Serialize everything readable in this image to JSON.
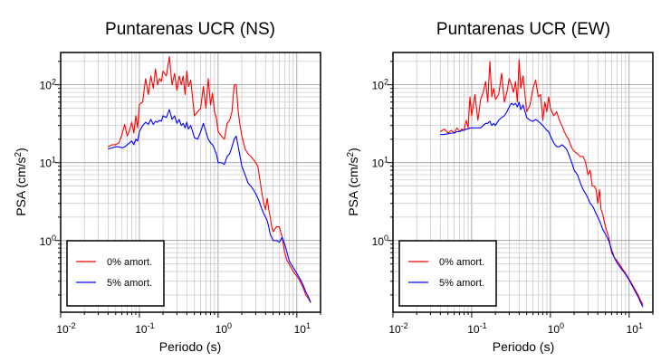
{
  "chart_data": [
    {
      "type": "line",
      "title": "Puntarenas UCR (NS)",
      "xlabel": "Periodo (s)",
      "ylabel": "PSA (cm/s",
      "ylabel_sup": "2",
      "ylabel_close": ")",
      "xscale": "log",
      "yscale": "log",
      "xlim": [
        0.01,
        20
      ],
      "ylim": [
        0.12,
        260
      ],
      "grid": true,
      "legend_position": "bottom-left",
      "xticks": [
        {
          "value": 0.01,
          "base": "10",
          "exp": "-2"
        },
        {
          "value": 0.1,
          "base": "10",
          "exp": "-1"
        },
        {
          "value": 1,
          "base": "10",
          "exp": "0"
        },
        {
          "value": 10,
          "base": "10",
          "exp": "1"
        }
      ],
      "yticks": [
        {
          "value": 1,
          "base": "10",
          "exp": "0"
        },
        {
          "value": 10,
          "base": "10",
          "exp": "1"
        },
        {
          "value": 100,
          "base": "10",
          "exp": "2"
        }
      ],
      "series": [
        {
          "name": "0% amort.",
          "color": "#ff0000",
          "x": [
            0.04,
            0.045,
            0.05,
            0.055,
            0.06,
            0.065,
            0.07,
            0.075,
            0.08,
            0.085,
            0.09,
            0.095,
            0.1,
            0.11,
            0.12,
            0.13,
            0.14,
            0.15,
            0.16,
            0.17,
            0.18,
            0.19,
            0.2,
            0.22,
            0.24,
            0.26,
            0.28,
            0.3,
            0.32,
            0.34,
            0.36,
            0.38,
            0.4,
            0.42,
            0.45,
            0.5,
            0.55,
            0.6,
            0.65,
            0.7,
            0.75,
            0.8,
            0.85,
            0.9,
            0.95,
            1.0,
            1.1,
            1.2,
            1.3,
            1.4,
            1.5,
            1.6,
            1.7,
            1.8,
            1.9,
            2.0,
            2.2,
            2.4,
            2.6,
            2.8,
            3.0,
            3.2,
            3.4,
            3.6,
            3.8,
            4.0,
            4.2,
            4.4,
            4.6,
            4.8,
            5.0,
            5.5,
            6.0,
            6.5,
            7.0,
            7.5,
            8.0,
            9.0,
            10,
            11,
            12,
            13,
            14,
            15
          ],
          "values": [
            16,
            17,
            17,
            18,
            23,
            31,
            22,
            26,
            33,
            24,
            40,
            28,
            56,
            60,
            120,
            75,
            130,
            90,
            160,
            100,
            120,
            110,
            150,
            130,
            230,
            100,
            140,
            85,
            130,
            100,
            130,
            75,
            150,
            95,
            115,
            40,
            45,
            50,
            95,
            50,
            120,
            55,
            78,
            45,
            38,
            25,
            22,
            20,
            32,
            35,
            45,
            100,
            100,
            45,
            30,
            22,
            15,
            13,
            12,
            11,
            10,
            9,
            6,
            4,
            3,
            2.5,
            3.5,
            2.5,
            2.0,
            1.5,
            1.3,
            1.5,
            1.5,
            1.1,
            0.7,
            0.55,
            0.5,
            0.4,
            0.35,
            0.3,
            0.25,
            0.2,
            0.18,
            0.16
          ]
        },
        {
          "name": "5% amort.",
          "color": "#0000ff",
          "x": [
            0.04,
            0.045,
            0.05,
            0.055,
            0.06,
            0.065,
            0.07,
            0.075,
            0.08,
            0.085,
            0.09,
            0.095,
            0.1,
            0.11,
            0.12,
            0.13,
            0.14,
            0.15,
            0.16,
            0.17,
            0.18,
            0.19,
            0.2,
            0.22,
            0.24,
            0.26,
            0.28,
            0.3,
            0.32,
            0.34,
            0.36,
            0.38,
            0.4,
            0.42,
            0.45,
            0.5,
            0.55,
            0.6,
            0.65,
            0.7,
            0.75,
            0.8,
            0.85,
            0.9,
            0.95,
            1.0,
            1.1,
            1.2,
            1.3,
            1.4,
            1.5,
            1.6,
            1.7,
            1.8,
            1.9,
            2.0,
            2.2,
            2.4,
            2.6,
            2.8,
            3.0,
            3.2,
            3.4,
            3.6,
            3.8,
            4.0,
            4.2,
            4.4,
            4.6,
            4.8,
            5.0,
            5.5,
            6.0,
            6.5,
            7.0,
            7.5,
            8.0,
            9.0,
            10,
            11,
            12,
            13,
            14,
            15
          ],
          "values": [
            15,
            15.5,
            16,
            16,
            15.5,
            16,
            17,
            18,
            19,
            17,
            20,
            19,
            25,
            30,
            33,
            31,
            36,
            31,
            34,
            33,
            35,
            34,
            40,
            38,
            48,
            36,
            40,
            32,
            36,
            30,
            32,
            28,
            33,
            27,
            30,
            21,
            20,
            25,
            32,
            25,
            20,
            18,
            17,
            15,
            13,
            10,
            10,
            9.5,
            12,
            13,
            16,
            20,
            22,
            16,
            12,
            9,
            7,
            5.5,
            5,
            4.5,
            4,
            3.5,
            3,
            2.5,
            2.2,
            2.0,
            1.8,
            1.5,
            1.2,
            1.1,
            1.0,
            1.0,
            0.95,
            1.1,
            0.9,
            0.7,
            0.55,
            0.45,
            0.38,
            0.32,
            0.27,
            0.22,
            0.19,
            0.16
          ]
        }
      ]
    },
    {
      "type": "line",
      "title": "Puntarenas UCR (EW)",
      "xlabel": "Periodo (s)",
      "ylabel": "PSA (cm/s",
      "ylabel_sup": "2",
      "ylabel_close": ")",
      "xscale": "log",
      "yscale": "log",
      "xlim": [
        0.01,
        20
      ],
      "ylim": [
        0.12,
        260
      ],
      "grid": true,
      "legend_position": "bottom-left",
      "xticks": [
        {
          "value": 0.01,
          "base": "10",
          "exp": "-2"
        },
        {
          "value": 0.1,
          "base": "10",
          "exp": "-1"
        },
        {
          "value": 1,
          "base": "10",
          "exp": "0"
        },
        {
          "value": 10,
          "base": "10",
          "exp": "1"
        }
      ],
      "yticks": [
        {
          "value": 1,
          "base": "10",
          "exp": "0"
        },
        {
          "value": 10,
          "base": "10",
          "exp": "1"
        },
        {
          "value": 100,
          "base": "10",
          "exp": "2"
        }
      ],
      "series": [
        {
          "name": "0% amort.",
          "color": "#ff0000",
          "x": [
            0.04,
            0.045,
            0.05,
            0.055,
            0.06,
            0.065,
            0.07,
            0.075,
            0.08,
            0.085,
            0.09,
            0.095,
            0.1,
            0.11,
            0.12,
            0.13,
            0.14,
            0.15,
            0.16,
            0.17,
            0.18,
            0.19,
            0.2,
            0.22,
            0.24,
            0.26,
            0.28,
            0.3,
            0.32,
            0.34,
            0.36,
            0.38,
            0.4,
            0.42,
            0.45,
            0.5,
            0.55,
            0.6,
            0.65,
            0.7,
            0.75,
            0.8,
            0.85,
            0.9,
            0.95,
            1.0,
            1.1,
            1.2,
            1.3,
            1.4,
            1.5,
            1.6,
            1.7,
            1.8,
            1.9,
            2.0,
            2.2,
            2.4,
            2.6,
            2.8,
            3.0,
            3.2,
            3.4,
            3.6,
            3.8,
            4.0,
            4.2,
            4.4,
            4.6,
            4.8,
            5.0,
            5.5,
            6.0,
            6.5,
            7.0,
            7.5,
            8.0,
            9.0,
            10,
            11,
            12,
            13,
            14,
            15
          ],
          "values": [
            25,
            27,
            24,
            26,
            24,
            28,
            25,
            27,
            26,
            35,
            28,
            70,
            40,
            75,
            35,
            65,
            80,
            110,
            60,
            200,
            70,
            90,
            65,
            75,
            140,
            60,
            80,
            120,
            100,
            80,
            110,
            60,
            210,
            90,
            130,
            45,
            55,
            90,
            115,
            70,
            75,
            35,
            60,
            45,
            70,
            50,
            40,
            45,
            35,
            30,
            25,
            22,
            20,
            17,
            15,
            14,
            13,
            12,
            12,
            10,
            7,
            8,
            5,
            5,
            4.5,
            3,
            4.5,
            2.5,
            2.2,
            1.8,
            1.5,
            1.1,
            0.7,
            0.6,
            0.55,
            0.5,
            0.45,
            0.38,
            0.32,
            0.27,
            0.23,
            0.2,
            0.17,
            0.15
          ]
        },
        {
          "name": "5% amort.",
          "color": "#0000ff",
          "x": [
            0.04,
            0.045,
            0.05,
            0.055,
            0.06,
            0.065,
            0.07,
            0.075,
            0.08,
            0.085,
            0.09,
            0.095,
            0.1,
            0.11,
            0.12,
            0.13,
            0.14,
            0.15,
            0.16,
            0.17,
            0.18,
            0.19,
            0.2,
            0.22,
            0.24,
            0.26,
            0.28,
            0.3,
            0.32,
            0.34,
            0.36,
            0.38,
            0.4,
            0.42,
            0.45,
            0.5,
            0.55,
            0.6,
            0.65,
            0.7,
            0.75,
            0.8,
            0.85,
            0.9,
            0.95,
            1.0,
            1.1,
            1.2,
            1.3,
            1.4,
            1.5,
            1.6,
            1.7,
            1.8,
            1.9,
            2.0,
            2.2,
            2.4,
            2.6,
            2.8,
            3.0,
            3.2,
            3.4,
            3.6,
            3.8,
            4.0,
            4.2,
            4.4,
            4.6,
            4.8,
            5.0,
            5.5,
            6.0,
            6.5,
            7.0,
            7.5,
            8.0,
            9.0,
            10,
            11,
            12,
            13,
            14,
            15
          ],
          "values": [
            23,
            23,
            23.5,
            24,
            24,
            25,
            25,
            26,
            26,
            27,
            27,
            28,
            28,
            28,
            28,
            28,
            30,
            32,
            32,
            34,
            30,
            32,
            30,
            35,
            38,
            40,
            45,
            52,
            58,
            55,
            58,
            52,
            60,
            48,
            55,
            38,
            35,
            34,
            36,
            34,
            32,
            30,
            28,
            26,
            25,
            22,
            18,
            16,
            16,
            17,
            16,
            15,
            13,
            11,
            9.5,
            8,
            7,
            5.5,
            4.5,
            4,
            3.5,
            3,
            2.8,
            2.5,
            2.2,
            2.0,
            1.8,
            1.6,
            1.4,
            1.3,
            1.2,
            1.0,
            0.75,
            0.6,
            0.52,
            0.47,
            0.43,
            0.37,
            0.31,
            0.26,
            0.22,
            0.19,
            0.16,
            0.14
          ]
        }
      ]
    }
  ]
}
